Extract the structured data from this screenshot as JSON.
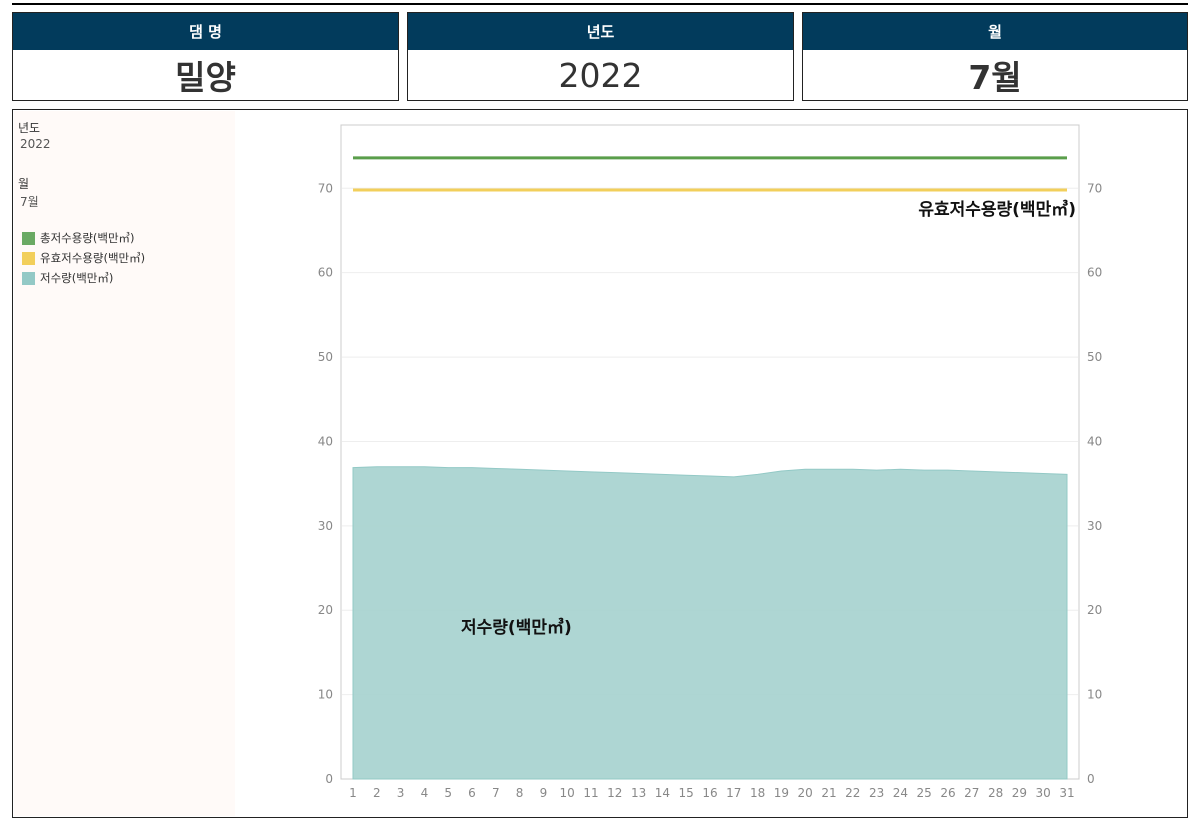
{
  "cards": [
    {
      "header": "댐 명",
      "value": "밀양"
    },
    {
      "header": "년도",
      "value": "2022"
    },
    {
      "header": "월",
      "value": "7월"
    }
  ],
  "sidebar": {
    "year_label": "년도",
    "year_value": "2022",
    "month_label": "월",
    "month_value": "7월",
    "legend": [
      {
        "label": "총저수용량(백만㎥)",
        "color": "#6aaa64"
      },
      {
        "label": "유효저수용량(백만㎥)",
        "color": "#f2cf5b"
      },
      {
        "label": "저수량(백만㎥)",
        "color": "#93c9c6"
      }
    ]
  },
  "chart_data": {
    "type": "area",
    "x": [
      1,
      2,
      3,
      4,
      5,
      6,
      7,
      8,
      9,
      10,
      11,
      12,
      13,
      14,
      15,
      16,
      17,
      18,
      19,
      20,
      21,
      22,
      23,
      24,
      25,
      26,
      27,
      28,
      29,
      30,
      31
    ],
    "ylim": [
      0,
      77.5
    ],
    "yticks": [
      0,
      10,
      20,
      30,
      40,
      50,
      60,
      70
    ],
    "series": [
      {
        "name": "총저수용량(백만㎥)",
        "type": "line",
        "color": "#5a9e4b",
        "values": [
          73.6,
          73.6,
          73.6,
          73.6,
          73.6,
          73.6,
          73.6,
          73.6,
          73.6,
          73.6,
          73.6,
          73.6,
          73.6,
          73.6,
          73.6,
          73.6,
          73.6,
          73.6,
          73.6,
          73.6,
          73.6,
          73.6,
          73.6,
          73.6,
          73.6,
          73.6,
          73.6,
          73.6,
          73.6,
          73.6,
          73.6
        ]
      },
      {
        "name": "유효저수용량(백만㎥)",
        "type": "line",
        "color": "#f2cf5b",
        "values": [
          69.8,
          69.8,
          69.8,
          69.8,
          69.8,
          69.8,
          69.8,
          69.8,
          69.8,
          69.8,
          69.8,
          69.8,
          69.8,
          69.8,
          69.8,
          69.8,
          69.8,
          69.8,
          69.8,
          69.8,
          69.8,
          69.8,
          69.8,
          69.8,
          69.8,
          69.8,
          69.8,
          69.8,
          69.8,
          69.8,
          69.8
        ]
      },
      {
        "name": "저수량(백만㎥)",
        "type": "area",
        "color": "#a5d1ce",
        "values": [
          36.9,
          37.0,
          37.0,
          37.0,
          36.9,
          36.9,
          36.8,
          36.7,
          36.6,
          36.5,
          36.4,
          36.3,
          36.2,
          36.1,
          36.0,
          35.9,
          35.8,
          36.1,
          36.5,
          36.7,
          36.7,
          36.7,
          36.6,
          36.7,
          36.6,
          36.6,
          36.5,
          36.4,
          36.3,
          36.2,
          36.1
        ]
      }
    ],
    "annotations": {
      "effective": "유효저수용량(백만㎥)",
      "storage": "저수량(백만㎥)"
    }
  }
}
